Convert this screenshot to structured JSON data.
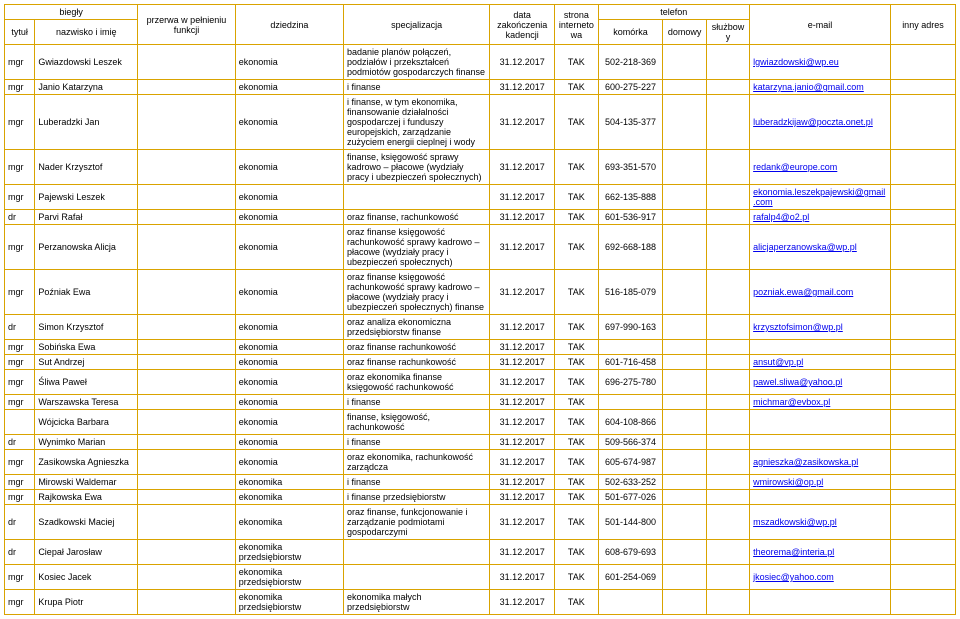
{
  "headers": {
    "biegly": "biegły",
    "przerwa": "przerwa w pełnieniu funkcji",
    "dziedzina": "dziedzina",
    "specjalizacja": "specjalizacja",
    "data": "data zakończenia kadencji",
    "strona": "strona internetowa",
    "telefon": "telefon",
    "email": "e-mail",
    "inny": "inny adres",
    "tytul": "tytuł",
    "nazwisko": "nazwisko i imię",
    "komorka": "komórka",
    "domowy": "domowy",
    "sluzbowy": "służbowy"
  },
  "rows": [
    {
      "tytul": "mgr",
      "nazwisko": "Gwiazdowski Leszek",
      "dziedzina": "ekonomia",
      "spec": "badanie planów połączeń, podziałów i przekształceń podmiotów gospodarczych finanse",
      "data": "31.12.2017",
      "strona": "TAK",
      "kom": "502-218-369",
      "email": "lgwiazdowski@wp.eu"
    },
    {
      "tytul": "mgr",
      "nazwisko": "Janio Katarzyna",
      "dziedzina": "ekonomia",
      "spec": "i finanse",
      "data": "31.12.2017",
      "strona": "TAK",
      "kom": "600-275-227",
      "email": "katarzyna.janio@gmail.com"
    },
    {
      "tytul": "mgr",
      "nazwisko": "Luberadzki Jan",
      "dziedzina": "ekonomia",
      "spec": "i finanse, w tym ekonomika, finansowanie działalności gospodarczej i funduszy europejskich, zarządzanie zużyciem energii cieplnej i wody",
      "data": "31.12.2017",
      "strona": "TAK",
      "kom": "504-135-377",
      "email": "luberadzkijaw@poczta.onet.pl"
    },
    {
      "tytul": "mgr",
      "nazwisko": "Nader Krzysztof",
      "dziedzina": "ekonomia",
      "spec": "finanse, księgowość sprawy kadrowo – płacowe (wydziały pracy i ubezpieczeń społecznych)",
      "data": "31.12.2017",
      "strona": "TAK",
      "kom": "693-351-570",
      "email": "redank@europe.com"
    },
    {
      "tytul": "mgr",
      "nazwisko": "Pajewski Leszek",
      "dziedzina": "ekonomia",
      "spec": "",
      "data": "31.12.2017",
      "strona": "TAK",
      "kom": "662-135-888",
      "email": "ekonomia.leszekpajewski@gmail.com"
    },
    {
      "tytul": "dr",
      "nazwisko": "Parvi Rafał",
      "dziedzina": "ekonomia",
      "spec": "oraz finanse, rachunkowość",
      "data": "31.12.2017",
      "strona": "TAK",
      "kom": "601-536-917",
      "email": "rafalp4@o2.pl"
    },
    {
      "tytul": "mgr",
      "nazwisko": "Perzanowska Alicja",
      "dziedzina": "ekonomia",
      "spec": "oraz finanse księgowość rachunkowość sprawy kadrowo – płacowe (wydziały pracy i ubezpieczeń społecznych)",
      "data": "31.12.2017",
      "strona": "TAK",
      "kom": "692-668-188",
      "email": "alicjaperzanowska@wp.pl"
    },
    {
      "tytul": "mgr",
      "nazwisko": "Poźniak Ewa",
      "dziedzina": "ekonomia",
      "spec": "oraz finanse księgowość rachunkowość sprawy kadrowo – płacowe (wydziały pracy i ubezpieczeń społecznych) finanse",
      "data": "31.12.2017",
      "strona": "TAK",
      "kom": "516-185-079",
      "email": "pozniak.ewa@gmail.com"
    },
    {
      "tytul": "dr",
      "nazwisko": "Simon Krzysztof",
      "dziedzina": "ekonomia",
      "spec": "oraz analiza ekonomiczna przedsiębiorstw finanse",
      "data": "31.12.2017",
      "strona": "TAK",
      "kom": "697-990-163",
      "email": "krzysztofsimon@wp.pl"
    },
    {
      "tytul": "mgr",
      "nazwisko": "Sobińska Ewa",
      "dziedzina": "ekonomia",
      "spec": "oraz finanse rachunkowość",
      "data": "31.12.2017",
      "strona": "TAK",
      "kom": "",
      "email": ""
    },
    {
      "tytul": "mgr",
      "nazwisko": "Sut Andrzej",
      "dziedzina": "ekonomia",
      "spec": "oraz finanse rachunkowość",
      "data": "31.12.2017",
      "strona": "TAK",
      "kom": "601-716-458",
      "email": "ansut@vp.pl"
    },
    {
      "tytul": "mgr",
      "nazwisko": "Śliwa Paweł",
      "dziedzina": "ekonomia",
      "spec": "oraz ekonomika finanse księgowość rachunkowość",
      "data": "31.12.2017",
      "strona": "TAK",
      "kom": "696-275-780",
      "email": "pawel.sliwa@yahoo.pl"
    },
    {
      "tytul": "mgr",
      "nazwisko": "Warszawska Teresa",
      "dziedzina": "ekonomia",
      "spec": "i finanse",
      "data": "31.12.2017",
      "strona": "TAK",
      "kom": "",
      "email": "michmar@evbox.pl"
    },
    {
      "tytul": "",
      "nazwisko": "Wójcicka Barbara",
      "dziedzina": "ekonomia",
      "spec": "finanse, księgowość, rachunkowość",
      "data": "31.12.2017",
      "strona": "TAK",
      "kom": "604-108-866",
      "email": ""
    },
    {
      "tytul": "dr",
      "nazwisko": "Wynimko Marian",
      "dziedzina": "ekonomia",
      "spec": "i finanse",
      "data": "31.12.2017",
      "strona": "TAK",
      "kom": "509-566-374",
      "email": ""
    },
    {
      "tytul": "mgr",
      "nazwisko": "Zasikowska Agnieszka",
      "dziedzina": "ekonomia",
      "spec": "oraz ekonomika, rachunkowość zarządcza",
      "data": "31.12.2017",
      "strona": "TAK",
      "kom": "605-674-987",
      "email": "agnieszka@zasikowska.pl"
    },
    {
      "tytul": "mgr",
      "nazwisko": "Mirowski Waldemar",
      "dziedzina": "ekonomika",
      "spec": "i finanse",
      "data": "31.12.2017",
      "strona": "TAK",
      "kom": "502-633-252",
      "email": "wmirowski@op.pl"
    },
    {
      "tytul": "mgr",
      "nazwisko": "Rajkowska Ewa",
      "dziedzina": "ekonomika",
      "spec": "i finanse przedsiębiorstw",
      "data": "31.12.2017",
      "strona": "TAK",
      "kom": "501-677-026",
      "email": ""
    },
    {
      "tytul": "dr",
      "nazwisko": "Szadkowski Maciej",
      "dziedzina": "ekonomika",
      "spec": "oraz finanse, funkcjonowanie i zarządzanie podmiotami gospodarczymi",
      "data": "31.12.2017",
      "strona": "TAK",
      "kom": "501-144-800",
      "email": "mszadkowski@wp.pl"
    },
    {
      "tytul": "dr",
      "nazwisko": "Ciepał Jarosław",
      "dziedzina": "ekonomika przedsiębiorstw",
      "spec": "",
      "data": "31.12.2017",
      "strona": "TAK",
      "kom": "608-679-693",
      "email": "theorema@interia.pl"
    },
    {
      "tytul": "mgr",
      "nazwisko": "Kosiec Jacek",
      "dziedzina": "ekonomika przedsiębiorstw",
      "spec": "",
      "data": "31.12.2017",
      "strona": "TAK",
      "kom": "601-254-069",
      "email": "jkosiec@yahoo.com"
    },
    {
      "tytul": "mgr",
      "nazwisko": "Krupa Piotr",
      "dziedzina": "ekonomika przedsiębiorstw",
      "spec": "ekonomika małych przedsiębiorstw",
      "data": "31.12.2017",
      "strona": "TAK",
      "kom": "",
      "email": ""
    }
  ]
}
